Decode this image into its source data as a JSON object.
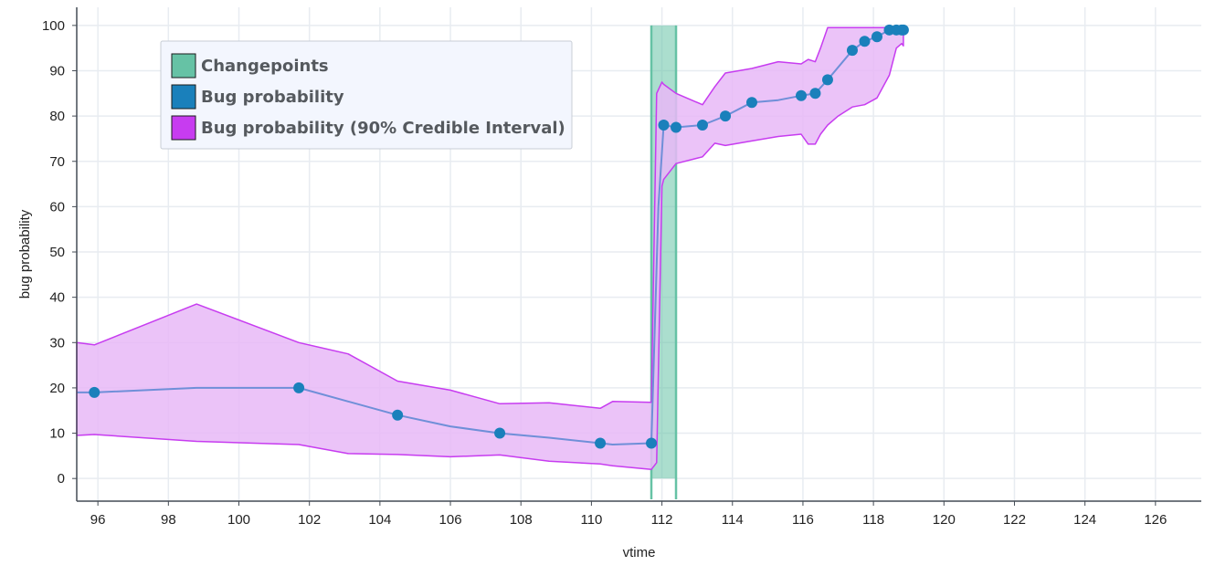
{
  "chart_data": {
    "type": "line",
    "title": "",
    "xlabel": "vtime",
    "ylabel": "bug probability",
    "xlim": [
      95.4,
      127.3
    ],
    "ylim": [
      -5,
      104
    ],
    "x_ticks": [
      96,
      98,
      100,
      102,
      104,
      106,
      108,
      110,
      112,
      114,
      116,
      118,
      120,
      122,
      124,
      126
    ],
    "y_ticks": [
      0,
      10,
      20,
      30,
      40,
      50,
      60,
      70,
      80,
      90,
      100
    ],
    "grid": true,
    "legend_position": "top-left",
    "legend": [
      {
        "label": "Changepoints",
        "color": "#66c2a5"
      },
      {
        "label": "Bug probability",
        "color": "#1a80bb"
      },
      {
        "label": "Bug probability (90% Credible Interval)",
        "color": "#c73cf0"
      }
    ],
    "changepoints": [
      {
        "start": 111.7,
        "end": 112.4
      }
    ],
    "series": [
      {
        "name": "Bug probability",
        "color": "#1a80bb",
        "line_color": "#6f8fd8",
        "x_line": [
          95.4,
          95.9,
          98.8,
          101.7,
          103.1,
          104.5,
          106.0,
          107.4,
          108.8,
          110.25,
          110.6,
          111.7,
          111.9,
          112.05,
          112.4,
          113.15,
          113.8,
          114.55,
          115.3,
          115.95,
          116.35,
          116.7,
          117.4,
          117.75,
          118.1,
          118.45,
          118.65,
          118.8,
          118.85
        ],
        "y_line": [
          19,
          19,
          20,
          20,
          17,
          14,
          11.5,
          10,
          9,
          7.8,
          7.5,
          7.8,
          60,
          78,
          77.5,
          78,
          80,
          83,
          83.5,
          84.5,
          85,
          88,
          94.5,
          96.5,
          97.5,
          99,
          99,
          99,
          99
        ],
        "x": [
          95.9,
          101.7,
          104.5,
          107.4,
          110.25,
          111.7,
          112.05,
          112.4,
          113.15,
          113.8,
          114.55,
          115.95,
          116.35,
          116.7,
          117.4,
          117.75,
          118.1,
          118.45,
          118.65,
          118.8,
          118.85
        ],
        "y": [
          19,
          20,
          14,
          10,
          7.8,
          7.8,
          78,
          77.5,
          78,
          80,
          83,
          84.5,
          85,
          88,
          94.5,
          96.5,
          97.5,
          99,
          99,
          99,
          99
        ]
      },
      {
        "name": "Bug probability (90% Credible Interval)",
        "color": "#c73cf0",
        "fill": "#e8b9f7",
        "x": [
          95.4,
          95.9,
          98.8,
          101.7,
          103.1,
          104.5,
          106.0,
          107.4,
          108.8,
          110.25,
          110.6,
          111.7,
          111.85,
          112.0,
          112.05,
          112.4,
          113.15,
          113.5,
          113.8,
          114.55,
          115.3,
          115.95,
          116.15,
          116.35,
          116.5,
          116.7,
          117.0,
          117.4,
          117.75,
          118.1,
          118.45,
          118.65,
          118.8,
          118.85
        ],
        "upper": [
          30,
          29.5,
          38.5,
          30,
          27.5,
          21.5,
          19.5,
          16.5,
          16.7,
          15.5,
          17,
          16.8,
          85,
          87.5,
          87,
          85,
          82.5,
          86.5,
          89.5,
          90.5,
          92,
          91.5,
          92.5,
          92,
          95,
          99.5,
          99.5,
          99.5,
          99.5,
          99.5,
          99.5,
          99.5,
          99.5,
          99.5
        ],
        "lower": [
          9.5,
          9.7,
          8.2,
          7.5,
          5.5,
          5.3,
          4.8,
          5.2,
          3.8,
          3.2,
          2.8,
          2,
          3.5,
          64.5,
          66,
          69.5,
          71,
          74,
          73.5,
          74.5,
          75.5,
          76,
          73.8,
          73.8,
          76,
          78,
          80,
          82,
          82.5,
          84,
          89,
          95,
          96,
          95.5
        ]
      }
    ]
  }
}
